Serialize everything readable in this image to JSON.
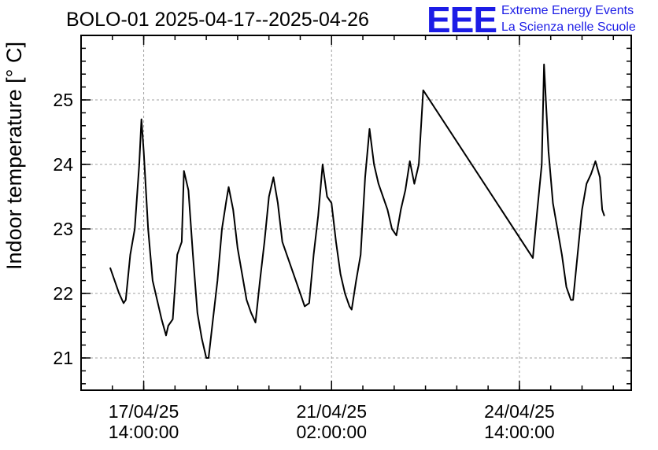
{
  "chart_data": {
    "type": "line",
    "title": "BOLO-01 2025-04-17--2025-04-26",
    "ylabel": "Indoor temperature [° C]",
    "xlabel": "",
    "ylim": [
      20.5,
      26.0
    ],
    "yticks": [
      21,
      22,
      23,
      24,
      25
    ],
    "xlim": [
      "2025-04-16T10:00:00",
      "2025-04-26T16:00:00"
    ],
    "xticks": [
      {
        "t": "2025-04-17T14:00:00",
        "line1": "17/04/25",
        "line2": "14:00:00"
      },
      {
        "t": "2025-04-21T02:00:00",
        "line1": "21/04/25",
        "line2": "02:00:00"
      },
      {
        "t": "2025-04-24T14:00:00",
        "line1": "24/04/25",
        "line2": "14:00:00"
      }
    ],
    "grid": true,
    "series": [
      {
        "color": "#000000",
        "points": [
          [
            "2025-04-16T23:00:00",
            22.4
          ],
          [
            "2025-04-17T01:00:00",
            22.2
          ],
          [
            "2025-04-17T03:00:00",
            22.0
          ],
          [
            "2025-04-17T05:00:00",
            21.85
          ],
          [
            "2025-04-17T06:00:00",
            21.9
          ],
          [
            "2025-04-17T08:00:00",
            22.6
          ],
          [
            "2025-04-17T10:00:00",
            23.0
          ],
          [
            "2025-04-17T12:00:00",
            24.0
          ],
          [
            "2025-04-17T13:00:00",
            24.7
          ],
          [
            "2025-04-17T14:00:00",
            24.2
          ],
          [
            "2025-04-17T16:00:00",
            23.0
          ],
          [
            "2025-04-17T18:00:00",
            22.2
          ],
          [
            "2025-04-17T20:00:00",
            21.9
          ],
          [
            "2025-04-17T22:00:00",
            21.6
          ],
          [
            "2025-04-18T00:00:00",
            21.35
          ],
          [
            "2025-04-18T01:00:00",
            21.5
          ],
          [
            "2025-04-18T03:00:00",
            21.6
          ],
          [
            "2025-04-18T05:00:00",
            22.6
          ],
          [
            "2025-04-18T07:00:00",
            22.8
          ],
          [
            "2025-04-18T08:00:00",
            23.9
          ],
          [
            "2025-04-18T10:00:00",
            23.6
          ],
          [
            "2025-04-18T12:00:00",
            22.6
          ],
          [
            "2025-04-18T14:00:00",
            21.7
          ],
          [
            "2025-04-18T16:00:00",
            21.3
          ],
          [
            "2025-04-18T18:00:00",
            21.0
          ],
          [
            "2025-04-18T19:00:00",
            21.0
          ],
          [
            "2025-04-18T21:00:00",
            21.6
          ],
          [
            "2025-04-18T23:00:00",
            22.2
          ],
          [
            "2025-04-19T01:00:00",
            23.0
          ],
          [
            "2025-04-19T03:00:00",
            23.45
          ],
          [
            "2025-04-19T04:00:00",
            23.65
          ],
          [
            "2025-04-19T06:00:00",
            23.3
          ],
          [
            "2025-04-19T08:00:00",
            22.7
          ],
          [
            "2025-04-19T10:00:00",
            22.3
          ],
          [
            "2025-04-19T12:00:00",
            21.9
          ],
          [
            "2025-04-19T14:00:00",
            21.7
          ],
          [
            "2025-04-19T16:00:00",
            21.55
          ],
          [
            "2025-04-19T18:00:00",
            22.2
          ],
          [
            "2025-04-19T20:00:00",
            22.8
          ],
          [
            "2025-04-19T22:00:00",
            23.5
          ],
          [
            "2025-04-20T00:00:00",
            23.8
          ],
          [
            "2025-04-20T02:00:00",
            23.4
          ],
          [
            "2025-04-20T04:00:00",
            22.8
          ],
          [
            "2025-04-20T06:00:00",
            22.6
          ],
          [
            "2025-04-20T08:00:00",
            22.4
          ],
          [
            "2025-04-20T10:00:00",
            22.2
          ],
          [
            "2025-04-20T12:00:00",
            22.0
          ],
          [
            "2025-04-20T14:00:00",
            21.8
          ],
          [
            "2025-04-20T16:00:00",
            21.85
          ],
          [
            "2025-04-20T18:00:00",
            22.6
          ],
          [
            "2025-04-20T20:00:00",
            23.2
          ],
          [
            "2025-04-20T22:00:00",
            24.0
          ],
          [
            "2025-04-21T00:00:00",
            23.5
          ],
          [
            "2025-04-21T02:00:00",
            23.4
          ],
          [
            "2025-04-21T04:00:00",
            22.8
          ],
          [
            "2025-04-21T06:00:00",
            22.3
          ],
          [
            "2025-04-21T08:00:00",
            22.0
          ],
          [
            "2025-04-21T10:00:00",
            21.8
          ],
          [
            "2025-04-21T11:00:00",
            21.75
          ],
          [
            "2025-04-21T13:00:00",
            22.2
          ],
          [
            "2025-04-21T15:00:00",
            22.6
          ],
          [
            "2025-04-21T17:00:00",
            23.8
          ],
          [
            "2025-04-21T19:00:00",
            24.55
          ],
          [
            "2025-04-21T21:00:00",
            24.0
          ],
          [
            "2025-04-21T23:00:00",
            23.7
          ],
          [
            "2025-04-22T01:00:00",
            23.5
          ],
          [
            "2025-04-22T03:00:00",
            23.3
          ],
          [
            "2025-04-22T05:00:00",
            23.0
          ],
          [
            "2025-04-22T07:00:00",
            22.9
          ],
          [
            "2025-04-22T09:00:00",
            23.3
          ],
          [
            "2025-04-22T11:00:00",
            23.6
          ],
          [
            "2025-04-22T13:00:00",
            24.05
          ],
          [
            "2025-04-22T15:00:00",
            23.7
          ],
          [
            "2025-04-22T17:00:00",
            24.0
          ],
          [
            "2025-04-22T19:00:00",
            25.15
          ],
          [
            "2025-04-24T20:00:00",
            22.55
          ],
          [
            "2025-04-24T22:00:00",
            23.3
          ],
          [
            "2025-04-25T00:00:00",
            24.0
          ],
          [
            "2025-04-25T01:00:00",
            25.55
          ],
          [
            "2025-04-25T03:00:00",
            24.2
          ],
          [
            "2025-04-25T05:00:00",
            23.4
          ],
          [
            "2025-04-25T07:00:00",
            23.0
          ],
          [
            "2025-04-25T09:00:00",
            22.6
          ],
          [
            "2025-04-25T11:00:00",
            22.1
          ],
          [
            "2025-04-25T13:00:00",
            21.9
          ],
          [
            "2025-04-25T14:00:00",
            21.9
          ],
          [
            "2025-04-25T16:00:00",
            22.6
          ],
          [
            "2025-04-25T18:00:00",
            23.3
          ],
          [
            "2025-04-25T20:00:00",
            23.7
          ],
          [
            "2025-04-25T22:00:00",
            23.85
          ],
          [
            "2025-04-26T00:00:00",
            24.05
          ],
          [
            "2025-04-26T02:00:00",
            23.8
          ],
          [
            "2025-04-26T03:00:00",
            23.3
          ],
          [
            "2025-04-26T04:00:00",
            23.2
          ]
        ]
      }
    ]
  },
  "logo": {
    "letters": "EEE",
    "line1": "Extreme Energy Events",
    "line2": "La Scienza nelle Scuole"
  }
}
